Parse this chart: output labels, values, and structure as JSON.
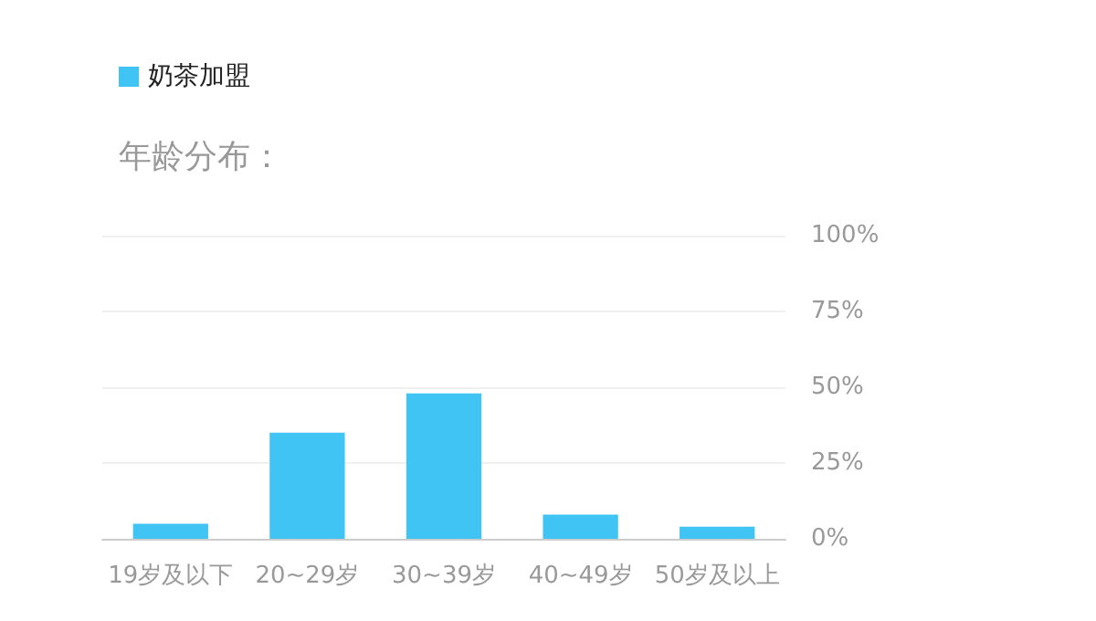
{
  "chart_data": {
    "type": "bar",
    "title": "年龄分布：",
    "categories": [
      "19岁及以下",
      "20~29岁",
      "30~39岁",
      "40~49岁",
      "50岁及以上"
    ],
    "series": [
      {
        "name": "奶茶加盟",
        "color": "#40c4f4",
        "values": [
          5,
          35,
          48,
          8,
          4
        ]
      }
    ],
    "ylim": [
      0,
      100
    ],
    "yticks": [
      {
        "value": 0,
        "label": "0%"
      },
      {
        "value": 25,
        "label": "25%"
      },
      {
        "value": 50,
        "label": "50%"
      },
      {
        "value": 75,
        "label": "75%"
      },
      {
        "value": 100,
        "label": "100%"
      }
    ],
    "grid": "y",
    "legend": "top left"
  }
}
